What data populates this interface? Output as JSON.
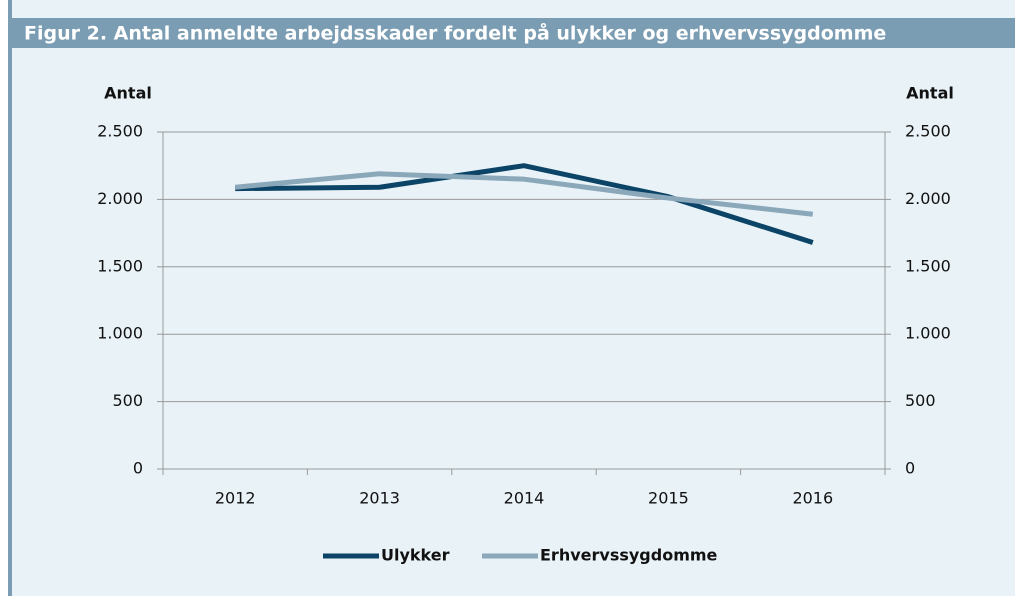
{
  "chart_data": {
    "type": "line",
    "title": "Figur 2. Antal anmeldte arbejdsskader fordelt på ulykker og erhvervssygdomme",
    "y_label": "Antal",
    "y2_label": "Antal",
    "categories": [
      "2012",
      "2013",
      "2014",
      "2015",
      "2016"
    ],
    "series": [
      {
        "name": "Ulykker",
        "color": "#0b4466",
        "values": [
          2080,
          2090,
          2250,
          2020,
          1680
        ]
      },
      {
        "name": "Erhvervssygdomme",
        "color": "#8ba7ba",
        "values": [
          2090,
          2190,
          2150,
          2010,
          1890
        ]
      }
    ],
    "ylim": [
      0,
      2500
    ],
    "yticks": [
      0,
      500,
      {
        "value": 1000,
        "label": "1.000"
      },
      {
        "value": 1500,
        "label": "1.500"
      },
      {
        "value": 2000,
        "label": "2.000"
      },
      {
        "value": 2500,
        "label": "2.500"
      }
    ],
    "y2lim": [
      0,
      2500
    ],
    "y2ticks": [
      0,
      500,
      {
        "value": 1000,
        "label": "1.000"
      },
      {
        "value": 1500,
        "label": "1.500"
      },
      {
        "value": 2000,
        "label": "2.000"
      },
      {
        "value": 2500,
        "label": "2.500"
      }
    ],
    "grid": true,
    "legend": "bottom"
  }
}
